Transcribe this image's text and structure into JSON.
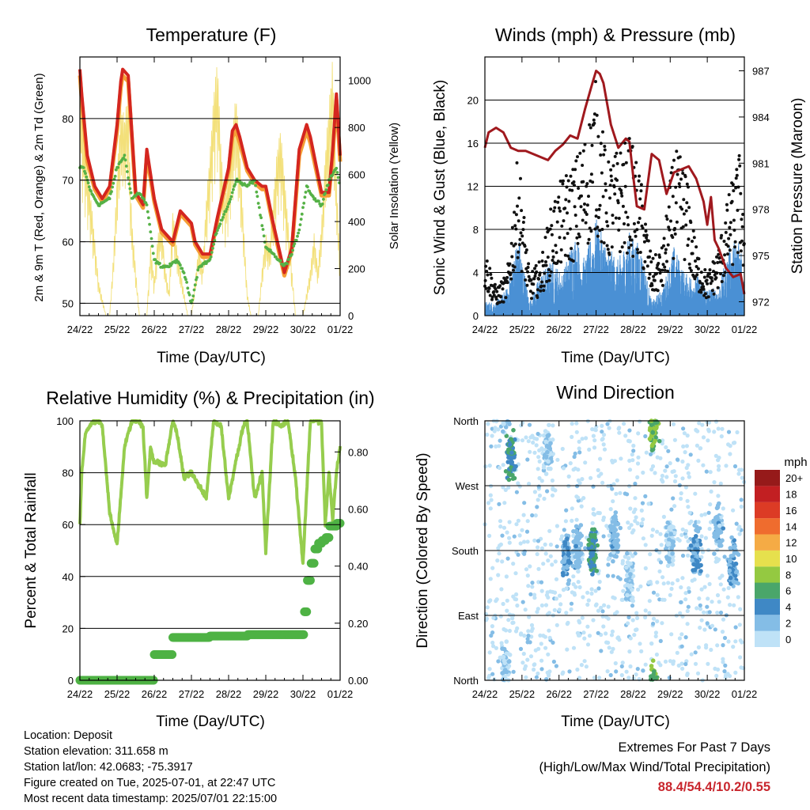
{
  "days": [
    "24/22",
    "25/22",
    "26/22",
    "27/22",
    "28/22",
    "29/22",
    "30/22",
    "01/22"
  ],
  "panels": {
    "temperature": {
      "title": "Temperature (F)",
      "ylabel": "2m & 9m T (Red, Orange) & 2m Td (Green)",
      "ylabel_right": "Solar Insolation (Yellow)",
      "xlabel": "Time (Day/UTC)",
      "yticks": [
        "50",
        "60",
        "70",
        "80"
      ],
      "yticks_right": [
        "0",
        "200",
        "400",
        "600",
        "800",
        "1000"
      ]
    },
    "winds": {
      "title": "Winds (mph) & Pressure (mb)",
      "ylabel": "Sonic Wind & Gust (Blue, Black)",
      "ylabel_right": "Station Pressure (Maroon)",
      "xlabel": "Time (Day/UTC)",
      "yticks": [
        "0",
        "4",
        "8",
        "12",
        "16",
        "20"
      ],
      "yticks_right": [
        "972",
        "975",
        "978",
        "981",
        "984",
        "987"
      ]
    },
    "humidity": {
      "title": "Relative Humidity (%) & Precipitation (in)",
      "ylabel": "Percent & Total Rainfall",
      "xlabel": "Time (Day/UTC)",
      "yticks": [
        "0",
        "20",
        "40",
        "60",
        "80",
        "100"
      ],
      "yticks_right": [
        "0.00",
        "0.20",
        "0.40",
        "0.60",
        "0.80"
      ]
    },
    "direction": {
      "title": "Wind Direction",
      "ylabel": "Direction (Colored By Speed)",
      "xlabel": "Time (Day/UTC)",
      "yticks": [
        "North",
        "East",
        "South",
        "West",
        "North"
      ],
      "legend_title": "mph",
      "legend_labels": [
        "0",
        "2",
        "4",
        "6",
        "8",
        "10",
        "12",
        "14",
        "16",
        "18",
        "20+"
      ],
      "legend_colors": [
        "#bfe2f7",
        "#84bde6",
        "#3f88c5",
        "#4aa66a",
        "#94c941",
        "#e6e04d",
        "#f5ab45",
        "#ef6c2e",
        "#dc3b25",
        "#c21f22",
        "#961a1a"
      ]
    }
  },
  "chart_data": [
    {
      "type": "line",
      "title": "Temperature (F)",
      "xlabel": "Time (Day/UTC)",
      "ylabel": "2m & 9m T (Red, Orange) & 2m Td (Green)",
      "ylabel_right": "Solar Insolation (Yellow)",
      "ylim": [
        48,
        90
      ],
      "ylim_right": [
        0,
        1100
      ],
      "xlim": [
        0,
        7
      ],
      "series": [
        {
          "color": "#d4261f",
          "x": [
            0,
            0.05,
            0.2,
            0.4,
            0.6,
            0.8,
            1.0,
            1.1,
            1.15,
            1.3,
            1.5,
            1.7,
            1.8,
            2.0,
            2.2,
            2.5,
            2.7,
            3.0,
            3.1,
            3.3,
            3.5,
            3.7,
            4.0,
            4.1,
            4.2,
            4.3,
            4.5,
            4.7,
            4.9,
            5.0,
            5.2,
            5.5,
            5.7,
            5.9,
            6.1,
            6.2,
            6.5,
            6.7,
            6.8,
            6.9,
            7.0
          ],
          "values": [
            88,
            84,
            74,
            69,
            67,
            69,
            79,
            86,
            88,
            87,
            68,
            66,
            75,
            67,
            62,
            60,
            65,
            63,
            60,
            58,
            58,
            64,
            72,
            78,
            79,
            77,
            72,
            70,
            69,
            69,
            63,
            55,
            59,
            75,
            79,
            77,
            68,
            68,
            75,
            84,
            74
          ]
        },
        {
          "color": "#f59e36",
          "x": [
            0,
            0.05,
            0.2,
            0.4,
            0.6,
            0.8,
            1.0,
            1.1,
            1.15,
            1.3,
            1.5,
            1.7,
            1.8,
            2.0,
            2.2,
            2.5,
            2.7,
            3.0,
            3.1,
            3.3,
            3.5,
            3.7,
            4.0,
            4.1,
            4.2,
            4.3,
            4.5,
            4.7,
            4.9,
            5.0,
            5.2,
            5.5,
            5.7,
            5.9,
            6.1,
            6.2,
            6.5,
            6.7,
            6.8,
            6.9,
            7.0
          ],
          "values": [
            87,
            83,
            73,
            68.5,
            66.5,
            68.5,
            78,
            85,
            87,
            86,
            67.5,
            65.5,
            74,
            66.5,
            61.5,
            59.5,
            64.5,
            62.5,
            59.5,
            57.5,
            57.5,
            63.5,
            71.5,
            77,
            78,
            76,
            71.5,
            69.5,
            68.5,
            68.5,
            62.5,
            54.5,
            58.5,
            74,
            78,
            76,
            67.5,
            67.5,
            74,
            83,
            73
          ]
        },
        {
          "color": "#55b146",
          "x": [
            0,
            0.1,
            0.3,
            0.5,
            0.8,
            1.0,
            1.2,
            1.4,
            1.6,
            1.8,
            2.0,
            2.2,
            2.4,
            2.6,
            2.8,
            3.0,
            3.2,
            3.5,
            3.7,
            4.0,
            4.2,
            4.5,
            4.7,
            5.0,
            5.2,
            5.5,
            5.7,
            5.9,
            6.1,
            6.3,
            6.5,
            6.7,
            6.9,
            7.0
          ],
          "values": [
            72,
            72,
            68,
            66,
            67,
            72,
            74,
            67,
            68,
            66,
            57,
            56,
            56,
            57,
            55,
            50,
            56,
            57,
            62,
            66,
            70,
            69,
            70,
            59,
            58,
            56,
            58,
            62,
            69,
            67,
            66,
            70,
            72,
            69
          ]
        },
        {
          "color": "#f3e07a",
          "x": [
            0,
            0.1,
            0.3,
            0.5,
            0.7,
            0.8,
            0.9,
            1.0,
            1.1,
            1.2,
            1.3,
            1.35,
            1.4,
            1.5,
            1.6,
            1.7,
            1.8,
            1.9,
            2.0,
            2.1,
            2.2,
            2.3,
            2.4,
            2.5,
            2.6,
            2.7,
            2.8,
            2.9,
            3.0,
            3.1,
            3.2,
            3.3,
            3.4,
            3.5,
            3.6,
            3.7,
            3.8,
            3.9,
            4.0,
            4.1,
            4.2,
            4.3,
            4.4,
            4.5,
            4.6,
            4.7,
            4.8,
            4.9,
            5.0,
            5.1,
            5.2,
            5.3,
            5.4,
            5.5,
            5.6,
            5.7,
            5.8,
            5.9,
            6.0,
            6.1,
            6.2,
            6.3,
            6.4,
            6.5,
            6.6,
            6.7,
            6.8,
            6.85,
            6.9,
            7.0
          ],
          "values": [
            1000,
            800,
            500,
            150,
            0,
            0,
            250,
            600,
            900,
            850,
            950,
            600,
            400,
            200,
            0,
            0,
            0,
            300,
            150,
            350,
            400,
            200,
            100,
            450,
            300,
            200,
            100,
            0,
            0,
            150,
            300,
            200,
            500,
            700,
            950,
            1100,
            700,
            500,
            600,
            800,
            950,
            700,
            400,
            100,
            0,
            0,
            0,
            200,
            350,
            300,
            500,
            700,
            800,
            600,
            400,
            200,
            0,
            0,
            0,
            100,
            200,
            350,
            200,
            400,
            700,
            900,
            1100,
            800,
            600,
            200
          ]
        }
      ]
    },
    {
      "type": "line",
      "title": "Winds (mph) & Pressure (mb)",
      "xlabel": "Time (Day/UTC)",
      "ylabel": "Sonic Wind & Gust (Blue, Black)",
      "ylabel_right": "Station Pressure (Maroon)",
      "ylim": [
        0,
        24
      ],
      "ylim_right": [
        971.1,
        987.9
      ],
      "xlim": [
        0,
        7
      ],
      "series": [
        {
          "color": "#a0191e",
          "x": [
            0,
            0.1,
            0.3,
            0.5,
            0.7,
            0.9,
            1.1,
            1.3,
            1.5,
            1.7,
            1.9,
            2.1,
            2.3,
            2.5,
            2.7,
            2.9,
            3.0,
            3.1,
            3.2,
            3.4,
            3.6,
            3.8,
            3.9,
            4.0,
            4.1,
            4.3,
            4.5,
            4.7,
            4.9,
            5.1,
            5.3,
            5.5,
            5.7,
            5.9,
            6.0,
            6.1,
            6.2,
            6.3,
            6.5,
            6.7,
            6.9,
            7.0
          ],
          "values": [
            982,
            983,
            983.3,
            983,
            982,
            981.8,
            981.8,
            981.6,
            981.4,
            981.2,
            981.8,
            982.2,
            982.8,
            982.6,
            984.5,
            986.2,
            987,
            986.8,
            986.2,
            983.5,
            982,
            982.6,
            982.4,
            980.2,
            978.2,
            978,
            981.6,
            981.2,
            979,
            980.4,
            980.6,
            980.8,
            980,
            978.5,
            977,
            978.8,
            976,
            975.5,
            974.2,
            973.6,
            973.8,
            972.5
          ]
        },
        {
          "color": "#4a90d4",
          "x": [
            0,
            0.3,
            0.6,
            0.9,
            1.2,
            1.5,
            1.8,
            2.1,
            2.4,
            2.7,
            3.0,
            3.3,
            3.6,
            3.9,
            4.2,
            4.5,
            4.8,
            5.1,
            5.4,
            5.7,
            6.0,
            6.3,
            6.6,
            6.9,
            7.0
          ],
          "values": [
            1,
            1,
            2,
            6,
            1,
            3,
            4,
            3,
            6,
            4,
            7,
            5,
            4,
            6,
            5,
            1,
            2,
            5,
            3,
            3,
            2,
            2,
            5,
            6,
            2
          ]
        },
        {
          "color": "#111111",
          "x": [
            0,
            0.3,
            0.6,
            0.9,
            1.2,
            1.5,
            1.8,
            2.1,
            2.4,
            2.7,
            3.0,
            3.3,
            3.6,
            3.9,
            4.2,
            4.5,
            4.8,
            5.1,
            5.4,
            5.7,
            6.0,
            6.3,
            6.6,
            6.9,
            7.0
          ],
          "values": [
            5,
            2,
            3,
            12,
            3,
            4,
            8,
            10,
            11,
            13,
            17,
            11,
            12,
            13,
            10,
            4,
            5,
            12,
            11,
            5,
            3,
            5,
            9,
            12,
            5
          ]
        }
      ]
    },
    {
      "type": "line",
      "title": "Relative Humidity (%) & Precipitation (in)",
      "xlabel": "Time (Day/UTC)",
      "ylabel": "Percent & Total Rainfall",
      "ylim": [
        0,
        100
      ],
      "ylim_right": [
        0,
        0.909
      ],
      "xlim": [
        0,
        7
      ],
      "series": [
        {
          "color": "#96cd4e",
          "x": [
            0,
            0.05,
            0.15,
            0.3,
            0.5,
            0.6,
            0.8,
            1.0,
            1.2,
            1.4,
            1.6,
            1.7,
            1.8,
            1.9,
            2.0,
            2.1,
            2.3,
            2.5,
            2.6,
            2.8,
            3.0,
            3.2,
            3.4,
            3.6,
            3.8,
            4.0,
            4.2,
            4.4,
            4.5,
            4.7,
            4.9,
            5.0,
            5.2,
            5.4,
            5.6,
            5.8,
            6.0,
            6.2,
            6.4,
            6.5,
            6.6,
            6.7,
            6.8,
            6.9,
            7.0
          ],
          "values": [
            60,
            80,
            95,
            99,
            100,
            98,
            65,
            52,
            90,
            100,
            100,
            97,
            70,
            90,
            84,
            84,
            83,
            100,
            96,
            78,
            80,
            75,
            70,
            100,
            98,
            70,
            85,
            98,
            100,
            70,
            80,
            50,
            100,
            98,
            100,
            78,
            45,
            100,
            100,
            99,
            60,
            80,
            62,
            80,
            90
          ]
        },
        {
          "color": "#4eb244",
          "x": [
            0,
            1.0,
            1.95,
            2.0,
            2.3,
            2.5,
            3.0,
            3.5,
            4.0,
            4.5,
            5.0,
            5.5,
            6.0,
            6.02,
            6.1,
            6.2,
            6.3,
            6.4,
            6.5,
            6.6,
            6.7,
            6.8,
            6.9,
            7.0
          ],
          "values": [
            0,
            0,
            0,
            0.09,
            0.09,
            0.15,
            0.15,
            0.155,
            0.155,
            0.16,
            0.16,
            0.16,
            0.16,
            0.24,
            0.35,
            0.41,
            0.46,
            0.48,
            0.49,
            0.5,
            0.54,
            0.54,
            0.55,
            0.55
          ]
        }
      ]
    },
    {
      "type": "scatter",
      "title": "Wind Direction",
      "xlabel": "Time (Day/UTC)",
      "ylabel": "Direction (Colored By Speed)",
      "ylim": [
        0,
        360
      ],
      "xlim": [
        0,
        7
      ],
      "color_scale": {
        "title": "mph",
        "bounds": [
          0,
          2,
          4,
          6,
          8,
          10,
          12,
          14,
          16,
          18,
          20
        ]
      },
      "clusters": [
        {
          "x": 0.7,
          "dir": 310,
          "speed": 6
        },
        {
          "x": 0.55,
          "dir": 20,
          "speed": 2
        },
        {
          "x": 1.7,
          "dir": 320,
          "speed": 2
        },
        {
          "x": 2.2,
          "dir": 170,
          "speed": 4
        },
        {
          "x": 2.5,
          "dir": 180,
          "speed": 3
        },
        {
          "x": 2.9,
          "dir": 180,
          "speed": 6
        },
        {
          "x": 3.5,
          "dir": 200,
          "speed": 3
        },
        {
          "x": 3.9,
          "dir": 140,
          "speed": 2
        },
        {
          "x": 4.55,
          "dir": 350,
          "speed": 8
        },
        {
          "x": 5.0,
          "dir": 190,
          "speed": 2
        },
        {
          "x": 5.7,
          "dir": 180,
          "speed": 4
        },
        {
          "x": 6.3,
          "dir": 210,
          "speed": 3
        },
        {
          "x": 6.7,
          "dir": 160,
          "speed": 4
        }
      ]
    }
  ],
  "info": {
    "location": "Location: Deposit",
    "elevation": "Station elevation: 311.658 m",
    "latlon": "Station lat/lon: 42.0683; -75.3917",
    "created": "Figure created on Tue, 2025-07-01, at 22:47 UTC",
    "timestamp": "Most recent data timestamp: 2025/07/01 22:15:00"
  },
  "extremes": {
    "line1": "Extremes For Past 7 Days",
    "line2": "(High/Low/Max Wind/Total Precipitation)",
    "values": "88.4/54.4/10.2/0.55"
  }
}
